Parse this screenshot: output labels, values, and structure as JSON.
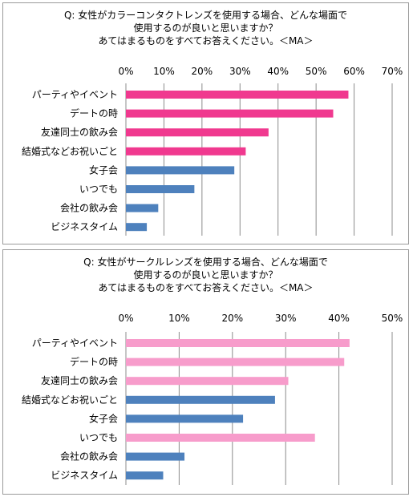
{
  "chart_data": [
    {
      "type": "bar",
      "orientation": "horizontal",
      "title": [
        "Q: 女性がカラーコンタクトレンズを使用する場合、どんな場面で",
        "使用するのが良いと思いますか？",
        "あてはまるものをすべてお答えください。＜MA＞"
      ],
      "categories": [
        "パーティやイベント",
        "デートの時",
        "友達同士の飲み会",
        "結婚式などお祝いごと",
        "女子会",
        "いつでも",
        "会社の飲み会",
        "ビジネスタイム"
      ],
      "values": [
        58.5,
        54.5,
        37.5,
        31.5,
        28.5,
        18.0,
        8.5,
        5.5
      ],
      "colors": [
        "#f0398f",
        "#f0398f",
        "#f0398f",
        "#f0398f",
        "#4e81bd",
        "#4e81bd",
        "#4e81bd",
        "#4e81bd"
      ],
      "xlim": [
        0,
        70
      ],
      "ticks": [
        0,
        10,
        20,
        30,
        40,
        50,
        60,
        70
      ],
      "tick_labels": [
        "0%",
        "10%",
        "20%",
        "30%",
        "40%",
        "50%",
        "60%",
        "70%"
      ],
      "grid": true
    },
    {
      "type": "bar",
      "orientation": "horizontal",
      "title": [
        "Q: 女性がサークルレンズを使用する場合、どんな場面で",
        "使用するのが良いと思いますか？",
        "あてはまるものをすべてお答えください。＜MA＞"
      ],
      "categories": [
        "パーティやイベント",
        "デートの時",
        "友達同士の飲み会",
        "結婚式などお祝いごと",
        "女子会",
        "いつでも",
        "会社の飲み会",
        "ビジネスタイム"
      ],
      "values": [
        42.0,
        41.0,
        30.5,
        28.0,
        22.0,
        35.5,
        11.0,
        7.0
      ],
      "colors": [
        "#f79ccb",
        "#f79ccb",
        "#f79ccb",
        "#4e81bd",
        "#4e81bd",
        "#f79ccb",
        "#4e81bd",
        "#4e81bd"
      ],
      "xlim": [
        0,
        50
      ],
      "ticks": [
        0,
        10,
        20,
        30,
        40,
        50
      ],
      "tick_labels": [
        "0%",
        "10%",
        "20%",
        "30%",
        "40%",
        "50%"
      ],
      "grid": true
    }
  ]
}
